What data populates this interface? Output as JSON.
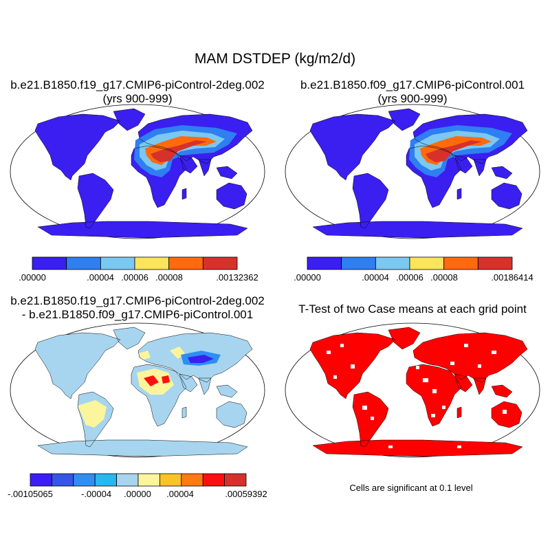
{
  "title": "MAM DSTDEP (kg/m2/d)",
  "panels": [
    {
      "id": "case1",
      "title_line1": "b.e21.B1850.f19_g17.CMIP6-piControl-2deg.002",
      "title_line2": "(yrs 900-999)",
      "colorbar": {
        "colors": [
          "#3a1ff0",
          "#2f7ef2",
          "#7bc8f0",
          "#fbe55b",
          "#ff6a0d",
          "#d6312b"
        ],
        "tick_labels": [
          ".00000",
          ".00004",
          ".00006",
          ".00008",
          ".00132362"
        ]
      }
    },
    {
      "id": "case2",
      "title_line1": "b.e21.B1850.f09_g17.CMIP6-piControl.001",
      "title_line2": "(yrs 900-999)",
      "colorbar": {
        "colors": [
          "#3a1ff0",
          "#2f7ef2",
          "#7bc8f0",
          "#fbe55b",
          "#ff6a0d",
          "#d6312b"
        ],
        "tick_labels": [
          ".00000",
          ".00004",
          ".00006",
          ".00008",
          ".00186414"
        ]
      }
    },
    {
      "id": "difference",
      "title_line1": "b.e21.B1850.f19_g17.CMIP6-piControl-2deg.002",
      "title_line2": "- b.e21.B1850.f09_g17.CMIP6-piControl.001",
      "colorbar": {
        "colors": [
          "#3a1ff0",
          "#3556e6",
          "#2f8ef2",
          "#27b8ef",
          "#a7d5ef",
          "#fdf59b",
          "#fbc22a",
          "#ff7a10",
          "#ff1010",
          "#d6312b"
        ],
        "tick_labels": [
          "-.00105065",
          "-.00004",
          ".00000",
          ".00004",
          ".00059392"
        ]
      }
    },
    {
      "id": "ttest",
      "title_line1": "T-Test of two Case means at each grid point",
      "note": "Cells are significant at 0.1 level"
    }
  ],
  "colors": {
    "land_case": "#3a1ff0",
    "land_diff": "#a7d5ef",
    "significant": "#ff0000",
    "outline": "#000000"
  }
}
